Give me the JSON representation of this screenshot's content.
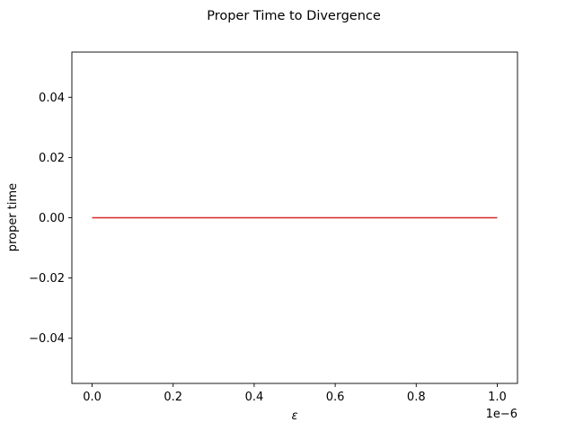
{
  "chart_data": {
    "type": "line",
    "title": "Proper Time to Divergence",
    "xlabel": "ε",
    "ylabel": "proper time",
    "x_offset_label": "1e−6",
    "xlim": [
      -0.05,
      1.05
    ],
    "ylim": [
      -0.055,
      0.055
    ],
    "x_ticks": [
      0.0,
      0.2,
      0.4,
      0.6,
      0.8,
      1.0
    ],
    "x_tick_labels": [
      "0.0",
      "0.2",
      "0.4",
      "0.6",
      "0.8",
      "1.0"
    ],
    "y_ticks": [
      0.04,
      0.02,
      0.0,
      -0.02,
      -0.04
    ],
    "y_tick_labels": [
      "0.04",
      "0.02",
      "0.00",
      "−0.02",
      "−0.04"
    ],
    "grid": false,
    "series": [
      {
        "name": "proper time",
        "color": "#d62728",
        "x": [
          0.0,
          0.1,
          0.2,
          0.3,
          0.4,
          0.5,
          0.6,
          0.7,
          0.8,
          0.9,
          1.0
        ],
        "y": [
          0,
          0,
          0,
          0,
          0,
          0,
          0,
          0,
          0,
          0,
          0
        ]
      }
    ]
  }
}
